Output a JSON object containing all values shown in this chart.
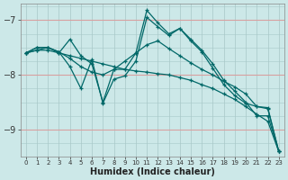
{
  "xlabel": "Humidex (Indice chaleur)",
  "background_color": "#cce8e8",
  "grid_color_h": "#d8a0a0",
  "grid_color_v": "#a8c8c8",
  "line_color": "#006868",
  "xlim": [
    -0.5,
    23.5
  ],
  "ylim": [
    -9.5,
    -6.7
  ],
  "yticks": [
    -9,
    -8,
    -7
  ],
  "xticks": [
    0,
    1,
    2,
    3,
    4,
    5,
    6,
    7,
    8,
    9,
    10,
    11,
    12,
    13,
    14,
    15,
    16,
    17,
    18,
    19,
    20,
    21,
    22,
    23
  ],
  "series": [
    {
      "x": [
        0,
        1,
        2,
        3,
        4,
        5,
        6,
        7,
        8,
        9,
        10,
        11,
        12,
        13,
        14,
        15,
        16,
        17,
        18,
        19,
        20,
        21,
        22,
        23
      ],
      "y": [
        -7.6,
        -7.5,
        -7.5,
        -7.6,
        -7.35,
        -7.65,
        -7.8,
        -8.5,
        -7.9,
        -7.9,
        -7.6,
        -6.82,
        -7.05,
        -7.25,
        -7.15,
        -7.35,
        -7.55,
        -7.8,
        -8.1,
        -8.3,
        -8.5,
        -8.75,
        -8.75,
        -9.4
      ]
    },
    {
      "x": [
        0,
        1,
        2,
        3,
        4,
        5,
        6,
        7,
        8,
        9,
        10,
        11,
        12,
        13,
        14,
        15,
        16,
        17,
        18,
        19,
        20,
        21,
        22,
        23
      ],
      "y": [
        -7.6,
        -7.55,
        -7.55,
        -7.6,
        -7.65,
        -7.7,
        -7.75,
        -7.8,
        -7.85,
        -7.9,
        -7.93,
        -7.95,
        -7.98,
        -8.0,
        -8.05,
        -8.1,
        -8.18,
        -8.25,
        -8.35,
        -8.45,
        -8.58,
        -8.72,
        -8.85,
        -9.4
      ]
    },
    {
      "x": [
        0,
        1,
        2,
        3,
        4,
        5,
        6,
        7,
        8,
        9,
        10,
        11,
        12,
        13,
        14,
        15,
        16,
        17,
        18,
        19,
        20,
        21,
        22,
        23
      ],
      "y": [
        -7.6,
        -7.55,
        -7.5,
        -7.58,
        -7.7,
        -7.85,
        -7.95,
        -8.0,
        -7.9,
        -7.75,
        -7.6,
        -7.45,
        -7.38,
        -7.52,
        -7.65,
        -7.78,
        -7.9,
        -8.0,
        -8.12,
        -8.22,
        -8.35,
        -8.58,
        -8.6,
        -9.4
      ]
    },
    {
      "x": [
        0,
        1,
        2,
        3,
        4,
        5,
        6,
        7,
        8,
        9,
        10,
        11,
        12,
        13,
        14,
        15,
        16,
        17,
        18,
        19,
        20,
        21,
        22,
        23
      ],
      "y": [
        -7.6,
        -7.5,
        -7.5,
        -7.58,
        -7.85,
        -8.25,
        -7.72,
        -8.52,
        -8.08,
        -8.02,
        -7.75,
        -6.95,
        -7.12,
        -7.28,
        -7.15,
        -7.38,
        -7.58,
        -7.88,
        -8.18,
        -8.38,
        -8.52,
        -8.58,
        -8.62,
        -9.4
      ]
    }
  ]
}
